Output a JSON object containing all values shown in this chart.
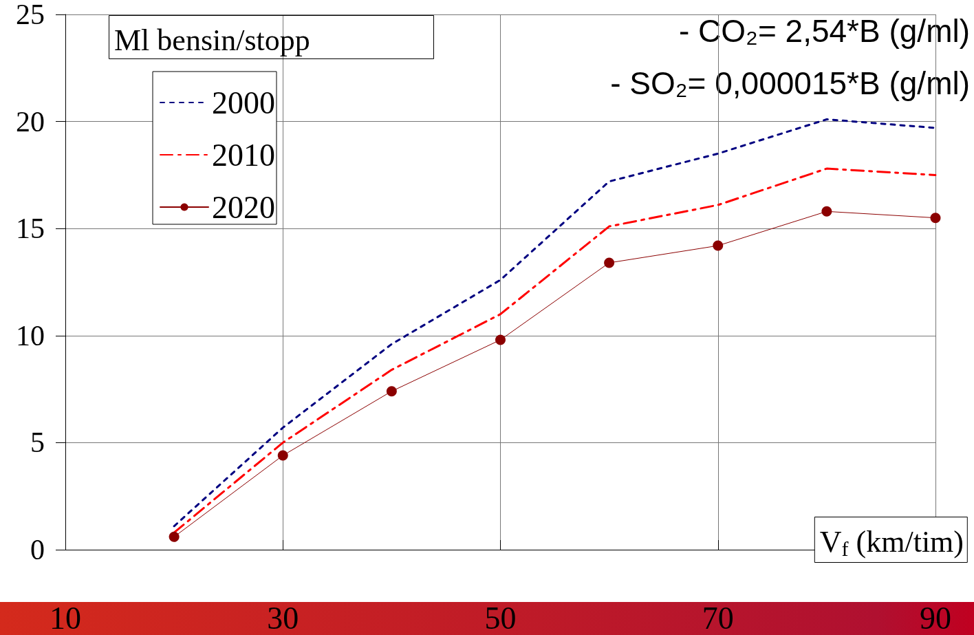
{
  "chart_data": {
    "type": "line",
    "ylabel": "Ml bensin/stopp",
    "xlabel": "V$_{f}$ (km/tim)",
    "annotations": [
      "- CO₂= 2,54*B (g/ml)",
      "- SO₂= 0,000015*B (g/ml)"
    ],
    "x": [
      20,
      30,
      40,
      50,
      60,
      70,
      80,
      90
    ],
    "xlim": [
      10,
      90
    ],
    "xticks": [
      10,
      30,
      50,
      70,
      90
    ],
    "ylim": [
      0,
      25
    ],
    "yticks": [
      0,
      5,
      10,
      15,
      20,
      25
    ],
    "grid": true,
    "legend": "top left",
    "series": [
      {
        "name": "2000",
        "color": "#000080",
        "line_style": "dotted",
        "marker": "none",
        "values": [
          1.1,
          5.7,
          9.6,
          12.6,
          17.2,
          18.5,
          20.1,
          19.7
        ]
      },
      {
        "name": "2010",
        "color": "#ff0000",
        "line_style": "dashed",
        "marker": "none",
        "values": [
          0.8,
          5.0,
          8.4,
          11.0,
          15.1,
          16.1,
          17.8,
          17.5
        ]
      },
      {
        "name": "2020",
        "color": "#8b0000",
        "line_style": "solid",
        "marker": "circle",
        "values": [
          0.6,
          4.4,
          7.4,
          9.8,
          13.4,
          14.2,
          15.8,
          15.5
        ]
      }
    ]
  }
}
